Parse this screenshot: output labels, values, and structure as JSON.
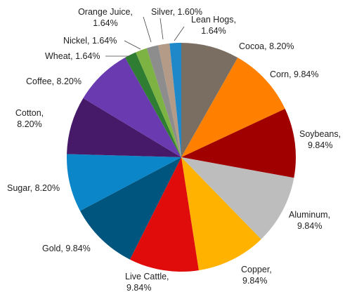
{
  "chart_data": {
    "type": "pie",
    "title": "",
    "labels": [
      "Cocoa",
      "Corn",
      "Soybeans",
      "Aluminum",
      "Copper",
      "Live Cattle",
      "Gold",
      "Sugar",
      "Cotton",
      "Coffee",
      "Wheat",
      "Nickel",
      "Orange Juice",
      "Silver",
      "Lean Hogs"
    ],
    "values": [
      8.2,
      9.84,
      9.84,
      9.84,
      9.84,
      9.84,
      9.84,
      8.2,
      8.2,
      8.2,
      1.64,
      1.64,
      1.64,
      1.6,
      1.64
    ],
    "value_labels": [
      "8.20%",
      "9.84%",
      "9.84%",
      "9.84%",
      "9.84%",
      "9.84%",
      "9.84%",
      "8.20%",
      "8.20%",
      "8.20%",
      "1.64%",
      "1.64%",
      "1.64%",
      "1.60%",
      "1.64%"
    ],
    "colors": [
      "#7a6e62",
      "#ff8000",
      "#a10000",
      "#bdbdbd",
      "#ffb300",
      "#e00b0b",
      "#00557f",
      "#0b86c8",
      "#461a68",
      "#6a3bb0",
      "#2e7d32",
      "#7cb342",
      "#8d8d8d",
      "#b39b87",
      "#1e88c9"
    ],
    "legend": "none",
    "start_angle_deg": 0,
    "direction": "clockwise"
  }
}
